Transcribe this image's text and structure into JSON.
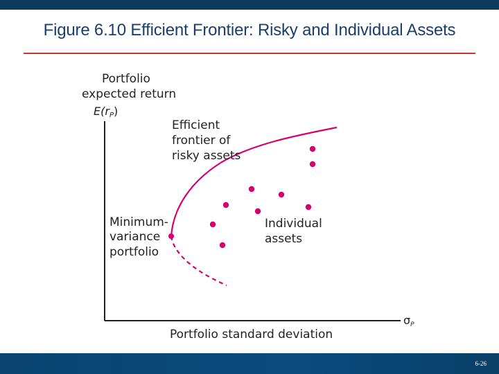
{
  "slide": {
    "title": "Figure 6.10 Efficient Frontier: Risky and Individual Assets",
    "page_number": "6-26"
  },
  "figure": {
    "y_axis_title_line1": "Portfolio",
    "y_axis_title_line2": "expected return",
    "y_axis_symbol_main": "E(r",
    "y_axis_symbol_sub": "P",
    "y_axis_symbol_close": ")",
    "x_axis_title": "Portfolio standard deviation",
    "x_axis_symbol_main": "σ",
    "x_axis_symbol_sub": "P",
    "frontier_label_line1": "Efficient",
    "frontier_label_line2": "frontier of",
    "frontier_label_line3": "risky assets",
    "mvp_label_line1": "Minimum-",
    "mvp_label_line2": "variance",
    "mvp_label_line3": "portfolio",
    "assets_label_line1": "Individual",
    "assets_label_line2": "assets",
    "colors": {
      "curve": "#d6006e",
      "axis": "#231f20",
      "title": "#1a3f6b",
      "rule": "#c0392b",
      "bar": "#0d3d5c"
    }
  }
}
